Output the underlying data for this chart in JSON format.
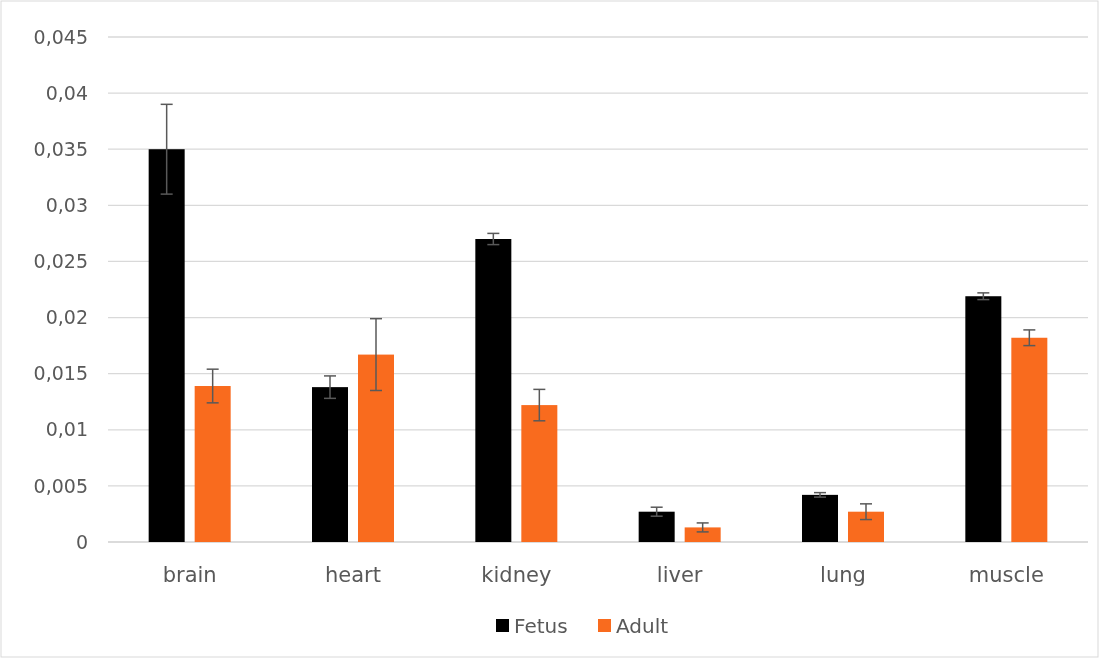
{
  "chart_data": {
    "type": "bar",
    "categories": [
      "brain",
      "heart",
      "kidney",
      "liver",
      "lung",
      "muscle"
    ],
    "series": [
      {
        "name": "Fetus",
        "color": "#000000",
        "values": [
          0.035,
          0.0138,
          0.027,
          0.0027,
          0.0042,
          0.0219
        ],
        "errors": [
          0.004,
          0.001,
          0.0005,
          0.0004,
          0.0002,
          0.0003
        ]
      },
      {
        "name": "Adult",
        "color": "#f96b1e",
        "values": [
          0.0139,
          0.0167,
          0.0122,
          0.0013,
          0.0027,
          0.0182
        ],
        "errors": [
          0.0015,
          0.0032,
          0.0014,
          0.0004,
          0.0007,
          0.0007
        ]
      }
    ],
    "ylim": [
      0,
      0.045
    ],
    "yticks": [
      {
        "value": 0,
        "label": "0"
      },
      {
        "value": 0.005,
        "label": "0,005"
      },
      {
        "value": 0.01,
        "label": "0,01"
      },
      {
        "value": 0.015,
        "label": "0,015"
      },
      {
        "value": 0.02,
        "label": "0,02"
      },
      {
        "value": 0.025,
        "label": "0,025"
      },
      {
        "value": 0.03,
        "label": "0,03"
      },
      {
        "value": 0.035,
        "label": "0,035"
      },
      {
        "value": 0.04,
        "label": "0,04"
      },
      {
        "value": 0.045,
        "label": "0,045"
      }
    ],
    "grid": "y",
    "legend": "bottom"
  }
}
